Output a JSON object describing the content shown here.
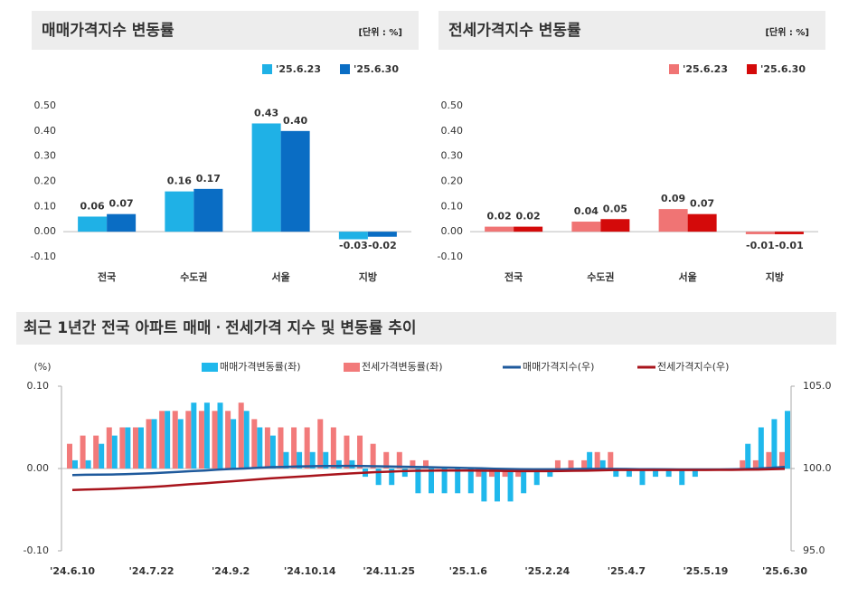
{
  "chart_data": [
    {
      "type": "bar",
      "title": "매매가격지수 변동률",
      "unit": "[단위 : %]",
      "categories": [
        "전국",
        "수도권",
        "서울",
        "지방"
      ],
      "series": [
        {
          "name": "'25.6.23",
          "color": "#1fb1e6",
          "values": [
            0.06,
            0.16,
            0.43,
            -0.03
          ],
          "value_labels": [
            "0.06",
            "0.16",
            "0.43",
            "-0.03"
          ]
        },
        {
          "name": "'25.6.30",
          "color": "#0a6dc4",
          "values": [
            0.07,
            0.17,
            0.4,
            -0.02
          ],
          "value_labels": [
            "0.07",
            "0.17",
            "0.40",
            "-0.02"
          ]
        }
      ],
      "ylim": [
        -0.1,
        0.5
      ],
      "yticks": [
        {
          "value": -0.1,
          "label": "-0.10"
        },
        {
          "value": 0,
          "label": "0.00"
        },
        {
          "value": 0.1,
          "label": "0.10"
        },
        {
          "value": 0.2,
          "label": "0.20"
        },
        {
          "value": 0.3,
          "label": "0.30"
        },
        {
          "value": 0.4,
          "label": "0.40"
        },
        {
          "value": 0.5,
          "label": "0.50"
        }
      ],
      "grid": false,
      "legend": "top-right"
    },
    {
      "type": "bar",
      "title": "전세가격지수 변동률",
      "unit": "[단위 : %]",
      "categories": [
        "전국",
        "수도권",
        "서울",
        "지방"
      ],
      "series": [
        {
          "name": "'25.6.23",
          "color": "#f07474",
          "values": [
            0.02,
            0.04,
            0.09,
            -0.01
          ],
          "value_labels": [
            "0.02",
            "0.04",
            "0.09",
            "-0.01"
          ]
        },
        {
          "name": "'25.6.30",
          "color": "#d40a0a",
          "values": [
            0.02,
            0.05,
            0.07,
            -0.01
          ],
          "value_labels": [
            "0.02",
            "0.05",
            "0.07",
            "-0.01"
          ]
        }
      ],
      "ylim": [
        -0.1,
        0.5
      ],
      "yticks": [
        {
          "value": -0.1,
          "label": "-0.10"
        },
        {
          "value": 0,
          "label": "0.00"
        },
        {
          "value": 0.1,
          "label": "0.10"
        },
        {
          "value": 0.2,
          "label": "0.20"
        },
        {
          "value": 0.3,
          "label": "0.30"
        },
        {
          "value": 0.4,
          "label": "0.40"
        },
        {
          "value": 0.5,
          "label": "0.50"
        }
      ],
      "grid": false,
      "legend": "top-right"
    },
    {
      "type": "combo",
      "title": "최근 1년간 전국 아파트 매매ㆍ전세가격 지수 및 변동률 추이",
      "y_label": "(%)",
      "categories": [
        "'24.6.10",
        null,
        null,
        null,
        null,
        null,
        "'24.7.22",
        null,
        null,
        null,
        null,
        null,
        "'24.9.2",
        null,
        null,
        null,
        null,
        null,
        "'24.10.14",
        null,
        null,
        null,
        null,
        null,
        "'24.11.25",
        null,
        null,
        null,
        null,
        null,
        "'25.1.6",
        null,
        null,
        null,
        null,
        null,
        "'25.2.24",
        null,
        null,
        null,
        null,
        null,
        "'25.4.7",
        null,
        null,
        null,
        null,
        null,
        "'25.5.19",
        null,
        null,
        null,
        null,
        null,
        "'25.6.30"
      ],
      "series": [
        {
          "name": "매매가격변동률(좌)",
          "color": "#1fb8ec",
          "kind": "bar",
          "values": [
            0.01,
            0.01,
            0.03,
            0.04,
            0.05,
            0.05,
            0.06,
            0.07,
            0.06,
            0.08,
            0.08,
            0.08,
            0.06,
            0.07,
            0.05,
            0.04,
            0.02,
            0.02,
            0.02,
            0.02,
            0.01,
            0.01,
            -0.01,
            -0.02,
            -0.02,
            -0.01,
            -0.03,
            -0.03,
            -0.03,
            -0.03,
            -0.03,
            -0.04,
            -0.04,
            -0.04,
            -0.03,
            -0.02,
            -0.01,
            0.0,
            0.0,
            0.02,
            0.01,
            -0.01,
            -0.01,
            -0.02,
            -0.01,
            -0.01,
            -0.02,
            -0.01,
            0.0,
            0.0,
            0.0,
            0.03,
            0.05,
            0.06,
            0.07
          ]
        },
        {
          "name": "전세가격변동률(좌)",
          "color": "#f27a7a",
          "kind": "bar",
          "values": [
            0.03,
            0.04,
            0.04,
            0.05,
            0.05,
            0.05,
            0.06,
            0.07,
            0.07,
            0.07,
            0.07,
            0.07,
            0.07,
            0.08,
            0.06,
            0.05,
            0.05,
            0.05,
            0.05,
            0.06,
            0.05,
            0.04,
            0.04,
            0.03,
            0.02,
            0.02,
            0.01,
            0.01,
            0.0,
            0.0,
            0.0,
            -0.01,
            -0.01,
            -0.01,
            -0.01,
            0.0,
            0.0,
            0.01,
            0.01,
            0.01,
            0.02,
            0.02,
            0.0,
            0.0,
            0.0,
            0.0,
            0.0,
            0.0,
            0.0,
            0.0,
            0.0,
            0.01,
            0.01,
            0.02,
            0.02
          ]
        },
        {
          "name": "매매가격지수(우)",
          "color": "#1f5a9c",
          "kind": "line",
          "axis": "y2",
          "values": [
            99.6,
            99.62,
            99.63,
            99.64,
            99.66,
            99.68,
            99.71,
            99.75,
            99.79,
            99.84,
            99.88,
            99.93,
            99.97,
            100.0,
            100.04,
            100.08,
            100.1,
            100.12,
            100.14,
            100.15,
            100.15,
            100.16,
            100.15,
            100.14,
            100.12,
            100.11,
            100.1,
            100.08,
            100.06,
            100.05,
            100.03,
            100.01,
            99.99,
            99.97,
            99.96,
            99.95,
            99.95,
            99.95,
            99.97,
            99.98,
            99.98,
            99.98,
            99.97,
            99.96,
            99.96,
            99.95,
            99.94,
            99.94,
            99.94,
            99.94,
            99.95,
            99.97,
            100.0,
            100.04,
            100.1
          ]
        },
        {
          "name": "전세가격지수(우)",
          "color": "#a8141c",
          "kind": "line",
          "axis": "y2",
          "values": [
            98.7,
            98.72,
            98.74,
            98.77,
            98.8,
            98.84,
            98.88,
            98.93,
            98.99,
            99.05,
            99.1,
            99.16,
            99.22,
            99.28,
            99.34,
            99.4,
            99.45,
            99.5,
            99.55,
            99.6,
            99.65,
            99.7,
            99.74,
            99.78,
            99.81,
            99.84,
            99.86,
            99.87,
            99.88,
            99.88,
            99.88,
            99.87,
            99.86,
            99.85,
            99.84,
            99.84,
            99.84,
            99.85,
            99.86,
            99.87,
            99.89,
            99.91,
            99.91,
            99.91,
            99.91,
            99.91,
            99.91,
            99.91,
            99.91,
            99.92,
            99.92,
            99.93,
            99.94,
            99.96,
            99.98
          ]
        }
      ],
      "ylim": [
        -0.1,
        0.1
      ],
      "yticks": [
        {
          "value": -0.1,
          "label": "-0.10"
        },
        {
          "value": 0,
          "label": "0.00"
        },
        {
          "value": 0.1,
          "label": "0.10"
        }
      ],
      "y2lim": [
        95,
        105
      ],
      "y2ticks": [
        {
          "value": 95,
          "label": "95.0"
        },
        {
          "value": 100,
          "label": "100.0"
        },
        {
          "value": 105,
          "label": "105.0"
        }
      ],
      "grid": false,
      "legend": "top"
    }
  ]
}
